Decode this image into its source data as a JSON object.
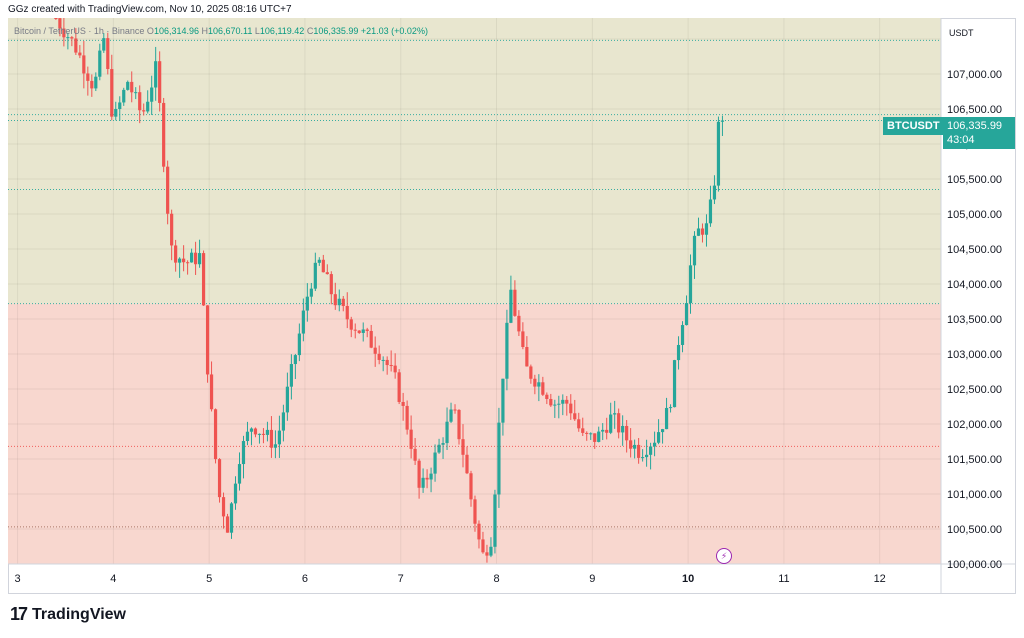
{
  "header": {
    "text": "GGz created with TradingView.com, Nov 10, 2025 08:16 UTC+7"
  },
  "legend": {
    "symbol": "Bitcoin / TetherUS · 1h · Binance",
    "o_label": "O",
    "o": "106,314.96",
    "h_label": "H",
    "h": "106,670.11",
    "l_label": "L",
    "l": "106,119.42",
    "c_label": "C",
    "c": "106,335.99",
    "chg": "+21.03 (+0.02%)"
  },
  "price_badge": {
    "symbol": "BTCUSDT",
    "price": "106,335.99",
    "countdown": "43:04"
  },
  "footer": {
    "logo_mark": "17",
    "logo_text": "TradingView"
  },
  "colors": {
    "up": "#26a69a",
    "down": "#ef5350",
    "zone_top": "#e8e6cf",
    "zone_bottom": "#f8d7cf"
  },
  "chart_data": {
    "type": "candlestick",
    "currency_label": "USDT",
    "ylim": [
      100000,
      107800
    ],
    "y_ticks": [
      100000,
      100500,
      101000,
      101500,
      102000,
      102500,
      103000,
      103500,
      104000,
      104500,
      105000,
      105500,
      106000,
      106500,
      107000,
      107500
    ],
    "y_tick_labels": [
      "100,000.00",
      "100,500.00",
      "101,000.00",
      "101,500.00",
      "102,000.00",
      "102,500.00",
      "103,000.00",
      "103,500.00",
      "104,000.00",
      "104,500.00",
      "105,000.00",
      "105,500.00",
      "106,000.00",
      "106,500.00",
      "107,000.00",
      "107,500.00"
    ],
    "x_ticks": [
      3,
      4,
      5,
      6,
      7,
      8,
      9,
      10,
      11,
      12
    ],
    "x_tick_labels": [
      "3",
      "4",
      "5",
      "6",
      "7",
      "8",
      "9",
      "10",
      "11",
      "12"
    ],
    "x_range": [
      2.9,
      12.64
    ],
    "zones": [
      {
        "from": 103720,
        "to": 107800,
        "color": "#e8e6cf"
      },
      {
        "from": 100000,
        "to": 103720,
        "color": "#f8d7cf"
      }
    ],
    "levels": [
      {
        "value": 107480,
        "style": "dotted",
        "color": "#26a69a"
      },
      {
        "value": 106420,
        "style": "dotted",
        "color": "#26a69a"
      },
      {
        "value": 106335.99,
        "style": "dotted",
        "color": "#26a69a"
      },
      {
        "value": 105350,
        "style": "dotted",
        "color": "#26a69a"
      },
      {
        "value": 103720,
        "style": "dotted",
        "color": "#26a69a"
      },
      {
        "value": 101680,
        "style": "dotted",
        "color": "#ef5350"
      },
      {
        "value": 100530,
        "style": "dotted",
        "color": "#9e6a5a"
      }
    ],
    "last_price": 106335.99,
    "waypoints": [
      [
        3.4,
        107800
      ],
      [
        3.6,
        107400
      ],
      [
        3.8,
        106800
      ],
      [
        3.9,
        107500
      ],
      [
        4.0,
        106300
      ],
      [
        4.15,
        106900
      ],
      [
        4.3,
        106400
      ],
      [
        4.45,
        107100
      ],
      [
        4.6,
        104500
      ],
      [
        4.75,
        104300
      ],
      [
        4.9,
        104400
      ],
      [
        5.0,
        102500
      ],
      [
        5.1,
        101000
      ],
      [
        5.2,
        100500
      ],
      [
        5.3,
        101500
      ],
      [
        5.45,
        102000
      ],
      [
        5.7,
        101700
      ],
      [
        5.9,
        103000
      ],
      [
        6.05,
        104000
      ],
      [
        6.15,
        104300
      ],
      [
        6.3,
        103800
      ],
      [
        6.45,
        103500
      ],
      [
        6.6,
        103300
      ],
      [
        6.8,
        103000
      ],
      [
        6.95,
        102600
      ],
      [
        7.1,
        101800
      ],
      [
        7.2,
        101000
      ],
      [
        7.35,
        101500
      ],
      [
        7.55,
        102200
      ],
      [
        7.65,
        101600
      ],
      [
        7.75,
        100800
      ],
      [
        7.85,
        100100
      ],
      [
        7.95,
        100400
      ],
      [
        8.05,
        102500
      ],
      [
        8.15,
        103900
      ],
      [
        8.3,
        102800
      ],
      [
        8.5,
        102500
      ],
      [
        8.6,
        102300
      ],
      [
        8.75,
        102300
      ],
      [
        8.9,
        101800
      ],
      [
        9.05,
        101800
      ],
      [
        9.2,
        102100
      ],
      [
        9.35,
        101800
      ],
      [
        9.5,
        101600
      ],
      [
        9.65,
        101800
      ],
      [
        9.8,
        102200
      ],
      [
        9.9,
        103200
      ],
      [
        9.98,
        103800
      ],
      [
        10.05,
        104500
      ],
      [
        10.12,
        104800
      ],
      [
        10.2,
        104800
      ],
      [
        10.27,
        105400
      ],
      [
        10.32,
        106300
      ],
      [
        10.36,
        106336
      ]
    ]
  }
}
